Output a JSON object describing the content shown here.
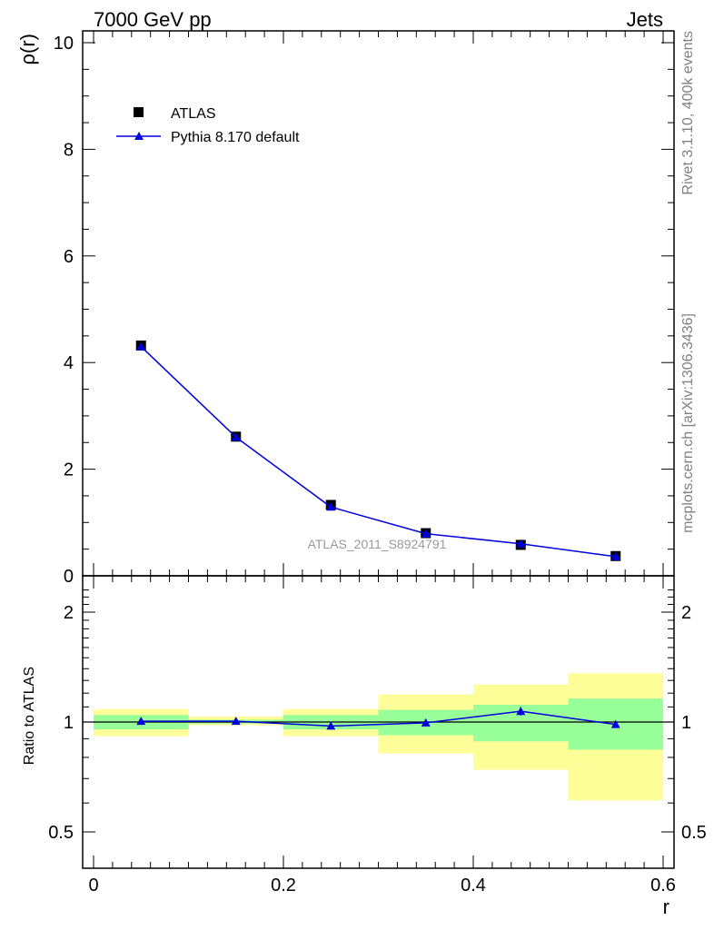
{
  "header": {
    "left": "7000 GeV pp",
    "right": "Jets"
  },
  "side_labels": {
    "rivet": "Rivet 3.1.10,  400k events",
    "mcplots": "mcplots.cern.ch [arXiv:1306.3436]"
  },
  "watermark": "ATLAS_2011_S8924791",
  "chart_data": [
    {
      "type": "line",
      "panel": "main",
      "ylabel": "ρ(r)",
      "xlabel": "",
      "xlim": [
        0,
        0.6
      ],
      "ylim": [
        0,
        10.2
      ],
      "y_ticks": [
        "0",
        "2",
        "4",
        "6",
        "8",
        "10"
      ],
      "legend": {
        "placement": "top-left"
      },
      "series": [
        {
          "name": "ATLAS",
          "style": "markers",
          "marker": "square",
          "color": "#000000",
          "x": [
            0.05,
            0.15,
            0.25,
            0.35,
            0.45,
            0.55
          ],
          "y": [
            4.32,
            2.61,
            1.33,
            0.8,
            0.58,
            0.37
          ],
          "yerr": [
            0.09,
            0.05,
            0.04,
            0.03,
            0.03,
            0.02
          ]
        },
        {
          "name": "Pythia 8.170 default",
          "style": "line+markers",
          "marker": "triangle",
          "color": "#0000dd",
          "x": [
            0.05,
            0.15,
            0.25,
            0.35,
            0.45,
            0.55
          ],
          "y": [
            4.3,
            2.6,
            1.29,
            0.79,
            0.6,
            0.36
          ],
          "yerr": [
            0.04,
            0.03,
            0.02,
            0.01,
            0.01,
            0.01
          ]
        }
      ]
    },
    {
      "type": "line",
      "panel": "ratio",
      "ylabel": "Ratio to ATLAS",
      "xlabel": "r",
      "xlim": [
        0,
        0.6
      ],
      "ylim": [
        0.42,
        2.3
      ],
      "scale": "log",
      "y_ticks": [
        "0.5",
        "1",
        "2"
      ],
      "x_ticks": [
        "0",
        "0.2",
        "0.4",
        "0.6"
      ],
      "bins": [
        [
          0,
          0.1
        ],
        [
          0.1,
          0.2
        ],
        [
          0.2,
          0.3
        ],
        [
          0.3,
          0.4
        ],
        [
          0.4,
          0.5
        ],
        [
          0.5,
          0.6
        ]
      ],
      "band_inner": {
        "color": "#99ff99",
        "low": [
          0.955,
          0.99,
          0.955,
          0.92,
          0.885,
          0.84
        ],
        "high": [
          1.045,
          1.015,
          1.045,
          1.08,
          1.115,
          1.16
        ]
      },
      "band_outer": {
        "color": "#ffff99",
        "low": [
          0.915,
          0.98,
          0.915,
          0.82,
          0.74,
          0.61
        ],
        "high": [
          1.085,
          1.035,
          1.085,
          1.19,
          1.265,
          1.36
        ]
      },
      "series": [
        {
          "name": "Pythia 8.170 default",
          "color": "#0000dd",
          "x": [
            0.05,
            0.15,
            0.25,
            0.35,
            0.45,
            0.55
          ],
          "y": [
            1.005,
            1.005,
            0.975,
            0.995,
            1.07,
            0.985
          ],
          "yerr": [
            0.015,
            0.012,
            0.018,
            0.022,
            0.028,
            0.022
          ]
        }
      ]
    }
  ]
}
